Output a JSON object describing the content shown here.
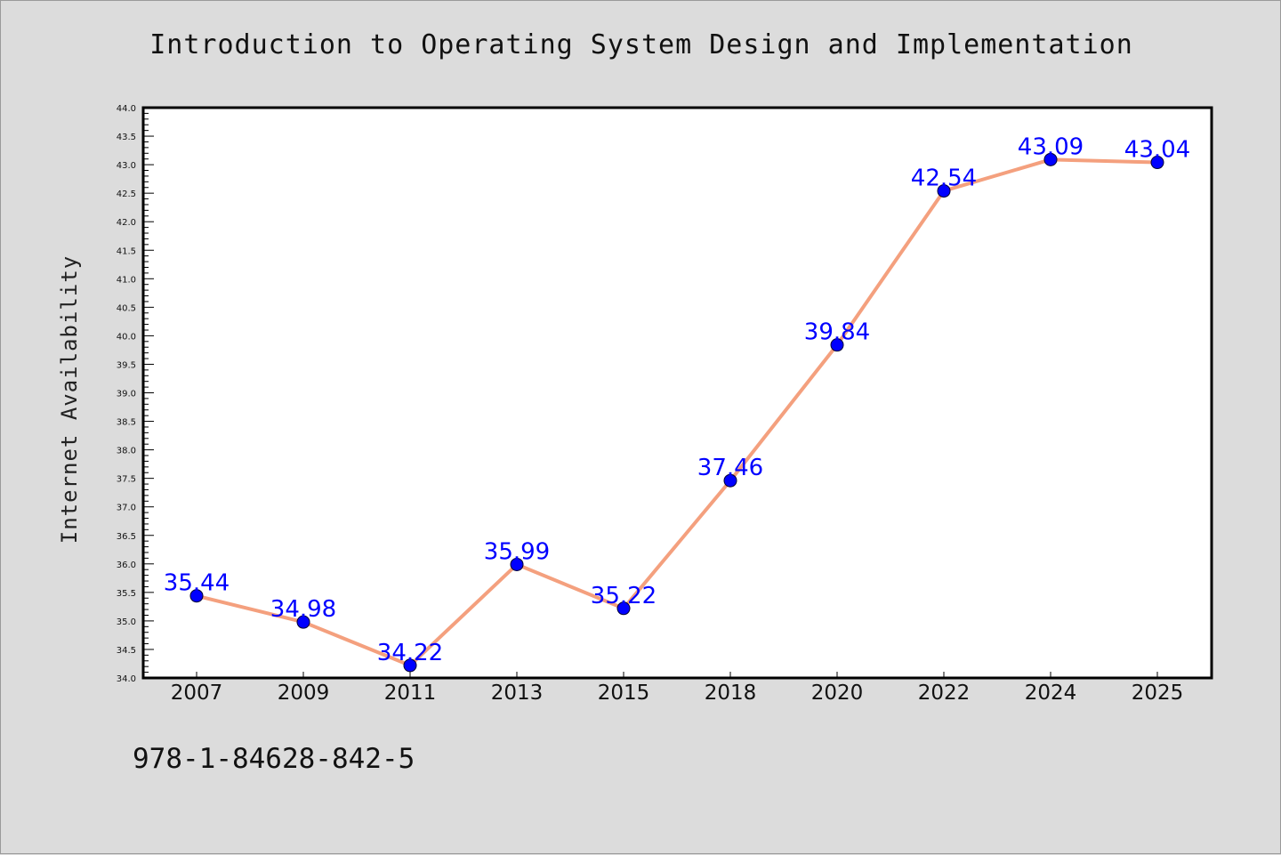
{
  "isbn": "978-1-84628-842-5",
  "chart_data": {
    "type": "line",
    "title": "Introduction to Operating System Design and Implementation",
    "xlabel": "",
    "ylabel": "Internet Availability",
    "categories": [
      "2007",
      "2009",
      "2011",
      "2013",
      "2015",
      "2018",
      "2020",
      "2022",
      "2024",
      "2025"
    ],
    "values": [
      35.44,
      34.98,
      34.22,
      35.99,
      35.22,
      37.46,
      39.84,
      42.54,
      43.09,
      43.04
    ],
    "data_labels": [
      "35.44",
      "34.98",
      "34.22",
      "35.99",
      "35.22",
      "37.46",
      "39.84",
      "42.54",
      "43.09",
      "43.04"
    ],
    "ylim": [
      34.0,
      44.0
    ],
    "y_major_step": 0.5,
    "y_minor_step": 0.1,
    "grid": false,
    "line_color": "#f4a07e",
    "marker_color": "#0000ff",
    "label_color": "#0000ff"
  }
}
